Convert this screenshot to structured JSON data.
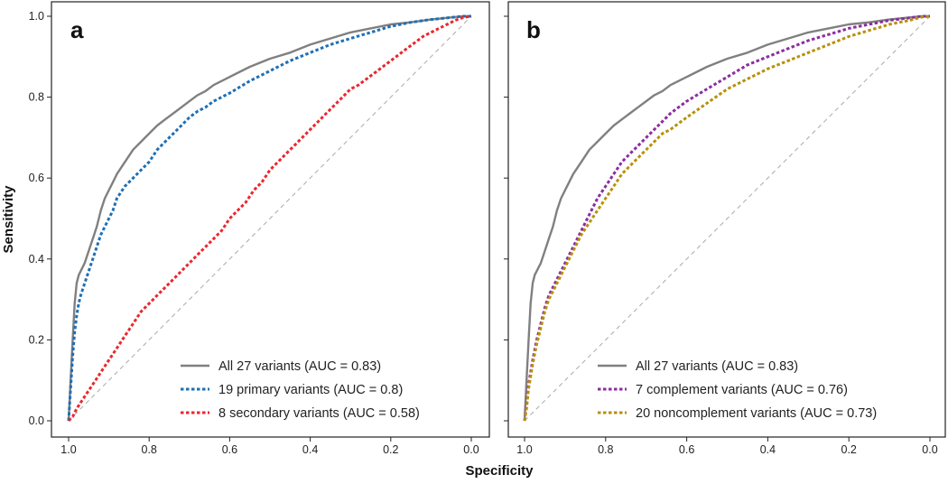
{
  "figure": {
    "xlabel": "Specificity",
    "ylabel": "Sensitivity"
  },
  "chart_data": [
    {
      "type": "line",
      "panel": "a",
      "xlabel": "Specificity",
      "ylabel": "Sensitivity",
      "xlim": [
        1.0,
        0.0
      ],
      "ylim": [
        0.0,
        1.0
      ],
      "xticks": [
        "1.0",
        "0.8",
        "0.6",
        "0.4",
        "0.2",
        "0.0"
      ],
      "yticks": [
        "0.0",
        "0.2",
        "0.4",
        "0.6",
        "0.8",
        "1.0"
      ],
      "legend_position": "bottom-right",
      "reference_line": {
        "from": [
          1.0,
          0.0
        ],
        "to": [
          0.0,
          1.0
        ],
        "color": "#aaaaaa",
        "style": "dashed"
      },
      "series": [
        {
          "name": "All 27 variants (AUC = 0.83)",
          "color": "#808080",
          "style": "solid",
          "x": [
            1.0,
            0.995,
            0.99,
            0.985,
            0.98,
            0.975,
            0.97,
            0.96,
            0.95,
            0.94,
            0.93,
            0.92,
            0.91,
            0.9,
            0.89,
            0.88,
            0.86,
            0.84,
            0.82,
            0.8,
            0.78,
            0.76,
            0.74,
            0.72,
            0.7,
            0.68,
            0.66,
            0.64,
            0.62,
            0.6,
            0.55,
            0.5,
            0.45,
            0.4,
            0.35,
            0.3,
            0.25,
            0.2,
            0.15,
            0.1,
            0.05,
            0.02,
            0.0
          ],
          "values": [
            0.0,
            0.1,
            0.2,
            0.29,
            0.34,
            0.36,
            0.37,
            0.39,
            0.42,
            0.45,
            0.48,
            0.52,
            0.55,
            0.57,
            0.59,
            0.61,
            0.64,
            0.67,
            0.69,
            0.71,
            0.73,
            0.745,
            0.76,
            0.775,
            0.79,
            0.805,
            0.815,
            0.83,
            0.84,
            0.85,
            0.875,
            0.895,
            0.91,
            0.93,
            0.945,
            0.96,
            0.97,
            0.98,
            0.985,
            0.992,
            0.997,
            1.0,
            1.0
          ]
        },
        {
          "name": "19 primary variants (AUC = 0.8)",
          "color": "#1f6fb5",
          "style": "dotted",
          "x": [
            1.0,
            0.995,
            0.99,
            0.985,
            0.98,
            0.975,
            0.97,
            0.96,
            0.95,
            0.94,
            0.93,
            0.92,
            0.91,
            0.9,
            0.89,
            0.88,
            0.86,
            0.84,
            0.82,
            0.8,
            0.78,
            0.76,
            0.74,
            0.72,
            0.7,
            0.68,
            0.66,
            0.64,
            0.62,
            0.6,
            0.55,
            0.5,
            0.45,
            0.4,
            0.35,
            0.3,
            0.25,
            0.2,
            0.15,
            0.1,
            0.05,
            0.02,
            0.0
          ],
          "values": [
            0.0,
            0.08,
            0.16,
            0.22,
            0.26,
            0.29,
            0.31,
            0.34,
            0.37,
            0.4,
            0.43,
            0.46,
            0.48,
            0.5,
            0.52,
            0.55,
            0.58,
            0.6,
            0.62,
            0.64,
            0.67,
            0.69,
            0.71,
            0.73,
            0.75,
            0.765,
            0.775,
            0.79,
            0.8,
            0.81,
            0.84,
            0.865,
            0.89,
            0.91,
            0.93,
            0.945,
            0.96,
            0.975,
            0.985,
            0.992,
            0.997,
            1.0,
            1.0
          ]
        },
        {
          "name": "8 secondary variants (AUC = 0.58)",
          "color": "#e8282e",
          "style": "dotted",
          "x": [
            1.0,
            0.99,
            0.98,
            0.96,
            0.94,
            0.92,
            0.9,
            0.88,
            0.86,
            0.84,
            0.82,
            0.8,
            0.78,
            0.76,
            0.74,
            0.72,
            0.7,
            0.68,
            0.66,
            0.64,
            0.62,
            0.6,
            0.58,
            0.56,
            0.54,
            0.52,
            0.5,
            0.48,
            0.46,
            0.44,
            0.42,
            0.4,
            0.38,
            0.36,
            0.34,
            0.32,
            0.3,
            0.28,
            0.26,
            0.24,
            0.22,
            0.2,
            0.18,
            0.16,
            0.14,
            0.12,
            0.1,
            0.08,
            0.06,
            0.04,
            0.02,
            0.0
          ],
          "values": [
            0.0,
            0.01,
            0.03,
            0.06,
            0.09,
            0.12,
            0.15,
            0.18,
            0.21,
            0.24,
            0.27,
            0.29,
            0.31,
            0.33,
            0.35,
            0.37,
            0.39,
            0.41,
            0.43,
            0.45,
            0.47,
            0.5,
            0.52,
            0.54,
            0.57,
            0.59,
            0.62,
            0.64,
            0.66,
            0.68,
            0.7,
            0.72,
            0.74,
            0.76,
            0.78,
            0.8,
            0.82,
            0.83,
            0.845,
            0.86,
            0.875,
            0.89,
            0.905,
            0.92,
            0.935,
            0.95,
            0.96,
            0.97,
            0.98,
            0.99,
            0.997,
            1.0
          ]
        }
      ]
    },
    {
      "type": "line",
      "panel": "b",
      "xlabel": "Specificity",
      "ylabel": "Sensitivity",
      "xlim": [
        1.0,
        0.0
      ],
      "ylim": [
        0.0,
        1.0
      ],
      "xticks": [
        "1.0",
        "0.8",
        "0.6",
        "0.4",
        "0.2",
        "0.0"
      ],
      "yticks": [
        "0.0",
        "0.2",
        "0.4",
        "0.6",
        "0.8",
        "1.0"
      ],
      "legend_position": "bottom-right",
      "reference_line": {
        "from": [
          1.0,
          0.0
        ],
        "to": [
          0.0,
          1.0
        ],
        "color": "#aaaaaa",
        "style": "dashed"
      },
      "series": [
        {
          "name": "All 27 variants (AUC = 0.83)",
          "color": "#808080",
          "style": "solid",
          "x": [
            1.0,
            0.995,
            0.99,
            0.985,
            0.98,
            0.975,
            0.97,
            0.96,
            0.95,
            0.94,
            0.93,
            0.92,
            0.91,
            0.9,
            0.89,
            0.88,
            0.86,
            0.84,
            0.82,
            0.8,
            0.78,
            0.76,
            0.74,
            0.72,
            0.7,
            0.68,
            0.66,
            0.64,
            0.62,
            0.6,
            0.55,
            0.5,
            0.45,
            0.4,
            0.35,
            0.3,
            0.25,
            0.2,
            0.15,
            0.1,
            0.05,
            0.02,
            0.0
          ],
          "values": [
            0.0,
            0.1,
            0.2,
            0.29,
            0.34,
            0.36,
            0.37,
            0.39,
            0.42,
            0.45,
            0.48,
            0.52,
            0.55,
            0.57,
            0.59,
            0.61,
            0.64,
            0.67,
            0.69,
            0.71,
            0.73,
            0.745,
            0.76,
            0.775,
            0.79,
            0.805,
            0.815,
            0.83,
            0.84,
            0.85,
            0.875,
            0.895,
            0.91,
            0.93,
            0.945,
            0.96,
            0.97,
            0.98,
            0.985,
            0.992,
            0.997,
            1.0,
            1.0
          ]
        },
        {
          "name": "7 complement variants (AUC = 0.76)",
          "color": "#8b2ea0",
          "style": "dotted",
          "x": [
            1.0,
            0.995,
            0.99,
            0.98,
            0.97,
            0.96,
            0.95,
            0.94,
            0.93,
            0.92,
            0.91,
            0.9,
            0.88,
            0.86,
            0.84,
            0.82,
            0.8,
            0.78,
            0.76,
            0.74,
            0.72,
            0.7,
            0.68,
            0.66,
            0.64,
            0.62,
            0.6,
            0.55,
            0.5,
            0.45,
            0.4,
            0.35,
            0.3,
            0.25,
            0.2,
            0.15,
            0.1,
            0.05,
            0.02,
            0.0
          ],
          "values": [
            0.0,
            0.04,
            0.09,
            0.15,
            0.2,
            0.24,
            0.28,
            0.31,
            0.33,
            0.35,
            0.37,
            0.39,
            0.43,
            0.47,
            0.51,
            0.55,
            0.58,
            0.61,
            0.64,
            0.66,
            0.68,
            0.7,
            0.72,
            0.74,
            0.76,
            0.775,
            0.79,
            0.82,
            0.85,
            0.88,
            0.9,
            0.92,
            0.94,
            0.955,
            0.97,
            0.98,
            0.99,
            0.996,
            1.0,
            1.0
          ]
        },
        {
          "name": "20 noncomplement variants (AUC = 0.73)",
          "color": "#b8900c",
          "style": "dotted",
          "x": [
            1.0,
            0.995,
            0.99,
            0.98,
            0.97,
            0.96,
            0.95,
            0.94,
            0.93,
            0.92,
            0.91,
            0.9,
            0.88,
            0.86,
            0.84,
            0.82,
            0.8,
            0.78,
            0.76,
            0.74,
            0.72,
            0.7,
            0.68,
            0.66,
            0.64,
            0.62,
            0.6,
            0.55,
            0.5,
            0.45,
            0.4,
            0.35,
            0.3,
            0.25,
            0.2,
            0.15,
            0.1,
            0.05,
            0.02,
            0.0
          ],
          "values": [
            0.0,
            0.03,
            0.08,
            0.14,
            0.19,
            0.23,
            0.27,
            0.3,
            0.32,
            0.34,
            0.36,
            0.38,
            0.42,
            0.46,
            0.49,
            0.52,
            0.55,
            0.58,
            0.61,
            0.63,
            0.65,
            0.67,
            0.69,
            0.71,
            0.72,
            0.735,
            0.75,
            0.785,
            0.82,
            0.845,
            0.87,
            0.89,
            0.91,
            0.93,
            0.95,
            0.965,
            0.98,
            0.99,
            0.998,
            1.0
          ]
        }
      ]
    }
  ]
}
